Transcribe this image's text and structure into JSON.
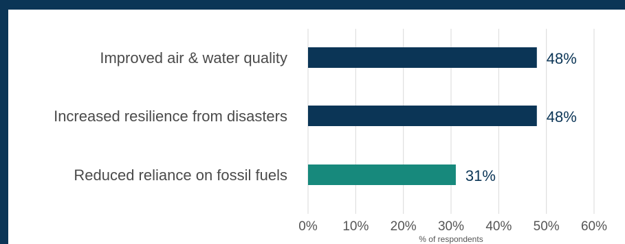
{
  "chart_data": {
    "type": "bar",
    "orientation": "horizontal",
    "categories": [
      "Improved air & water quality",
      "Increased resilience from disasters",
      "Reduced reliance on fossil fuels"
    ],
    "values": [
      48,
      48,
      31
    ],
    "bar_colors": [
      "#0b3556",
      "#0b3556",
      "#17897c"
    ],
    "data_labels": [
      "48%",
      "48%",
      "31%"
    ],
    "xlim": [
      0,
      60
    ],
    "xticks": [
      0,
      10,
      20,
      30,
      40,
      50,
      60
    ],
    "xtick_labels": [
      "0%",
      "10%",
      "20%",
      "30%",
      "40%",
      "50%",
      "60%"
    ],
    "xlabel": "% of respondents",
    "grid": "vertical",
    "legend": "none"
  },
  "colors": {
    "background_frame": "#0b3556",
    "panel": "#ffffff",
    "gridline": "#d9d9d9",
    "label_text": "#4a4a4a",
    "data_label_text": "#0b3556"
  }
}
